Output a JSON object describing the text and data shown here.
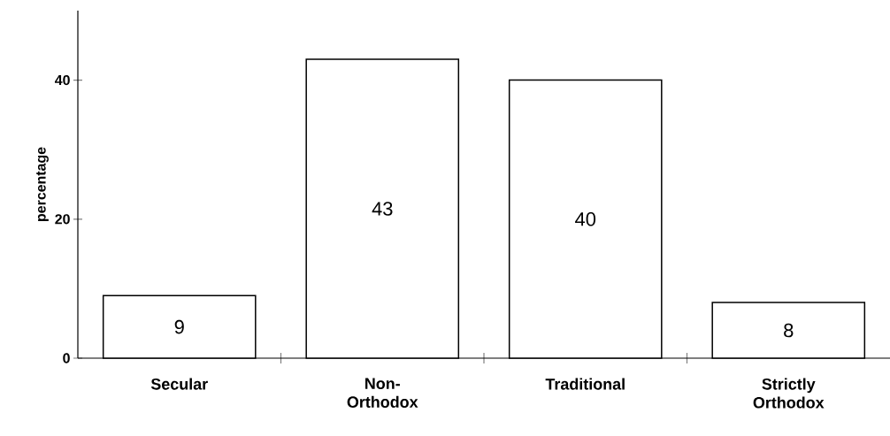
{
  "chart_data": {
    "type": "bar",
    "ylabel": "percentage",
    "categories": [
      "Secular",
      "Non-Orthodox",
      "Traditional",
      "Strictly Orthodox"
    ],
    "values": [
      9,
      43,
      40,
      8
    ],
    "color": "#ffffff",
    "ylim": [
      0,
      50
    ],
    "yticks": [
      0,
      20,
      40
    ],
    "data_labels": true,
    "grid": false
  }
}
